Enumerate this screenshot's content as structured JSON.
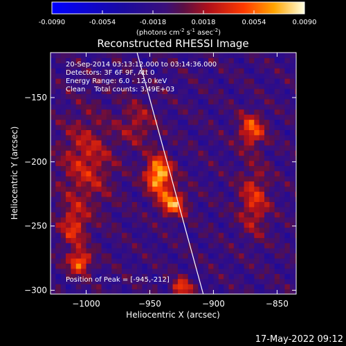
{
  "colorbar": {
    "tick_labels": [
      "-0.0090",
      "-0.0054",
      "-0.0018",
      "0.0018",
      "0.0054",
      "0.0090"
    ],
    "range": [
      -0.009,
      0.009
    ],
    "unit_label_parts": [
      "(photons cm",
      "-2",
      " s",
      "-1",
      " asec",
      "-2",
      ")"
    ],
    "stops": [
      {
        "offset": 0.0,
        "color": "#0000ff"
      },
      {
        "offset": 0.28,
        "color": "#1a0aa0"
      },
      {
        "offset": 0.45,
        "color": "#3a0f7a"
      },
      {
        "offset": 0.52,
        "color": "#5a0f45"
      },
      {
        "offset": 0.62,
        "color": "#b0101a"
      },
      {
        "offset": 0.76,
        "color": "#ff3a00"
      },
      {
        "offset": 0.88,
        "color": "#ffa500"
      },
      {
        "offset": 1.0,
        "color": "#ffffe0"
      }
    ]
  },
  "chart_data": {
    "type": "heatmap",
    "title": "Reconstructed RHESSI Image",
    "xlabel": "Heliocentric X (arcsec)",
    "ylabel": "Heliocentric Y (arcsec)",
    "xlim": [
      -1028,
      -835
    ],
    "ylim": [
      -303,
      -115
    ],
    "x_ticks": [
      -1000,
      -950,
      -900,
      -850
    ],
    "x_tick_labels": [
      "−1000",
      "−950",
      "−900",
      "−850"
    ],
    "y_ticks": [
      -150,
      -200,
      -250,
      -300
    ],
    "y_tick_labels": [
      "−150",
      "−200",
      "−250",
      "−300"
    ],
    "info_lines": [
      "20-Sep-2014 03:13:12.000 to 03:14:36.000",
      "Detectors: 3F 6F 9F, Att 0",
      "Energy Range: 6.0 - 12.0 keV",
      "Clean    Total counts: 3.49E+03"
    ],
    "peak_label": "Position of Peak = [-945,-212]",
    "limb_line": [
      [
        -960,
        -115
      ],
      [
        -908,
        -303
      ]
    ],
    "sources": [
      {
        "x": -943,
        "y": -210,
        "amp": 0.0092,
        "sx": 7,
        "sy": 10
      },
      {
        "x": -932,
        "y": -232,
        "amp": 0.0072,
        "sx": 7,
        "sy": 7
      },
      {
        "x": -1005,
        "y": -278,
        "amp": 0.0068,
        "sx": 6,
        "sy": 6
      },
      {
        "x": -1010,
        "y": -250,
        "amp": 0.0045,
        "sx": 7,
        "sy": 12
      },
      {
        "x": -925,
        "y": -298,
        "amp": 0.006,
        "sx": 5,
        "sy": 5
      },
      {
        "x": -870,
        "y": -175,
        "amp": 0.006,
        "sx": 7,
        "sy": 9
      },
      {
        "x": -868,
        "y": -230,
        "amp": 0.0045,
        "sx": 8,
        "sy": 18
      },
      {
        "x": -1000,
        "y": -200,
        "amp": 0.004,
        "sx": 14,
        "sy": 25
      },
      {
        "x": -960,
        "y": -170,
        "amp": 0.003,
        "sx": 10,
        "sy": 12
      }
    ]
  },
  "footer": {
    "timestamp": "17-May-2022 09:12"
  }
}
